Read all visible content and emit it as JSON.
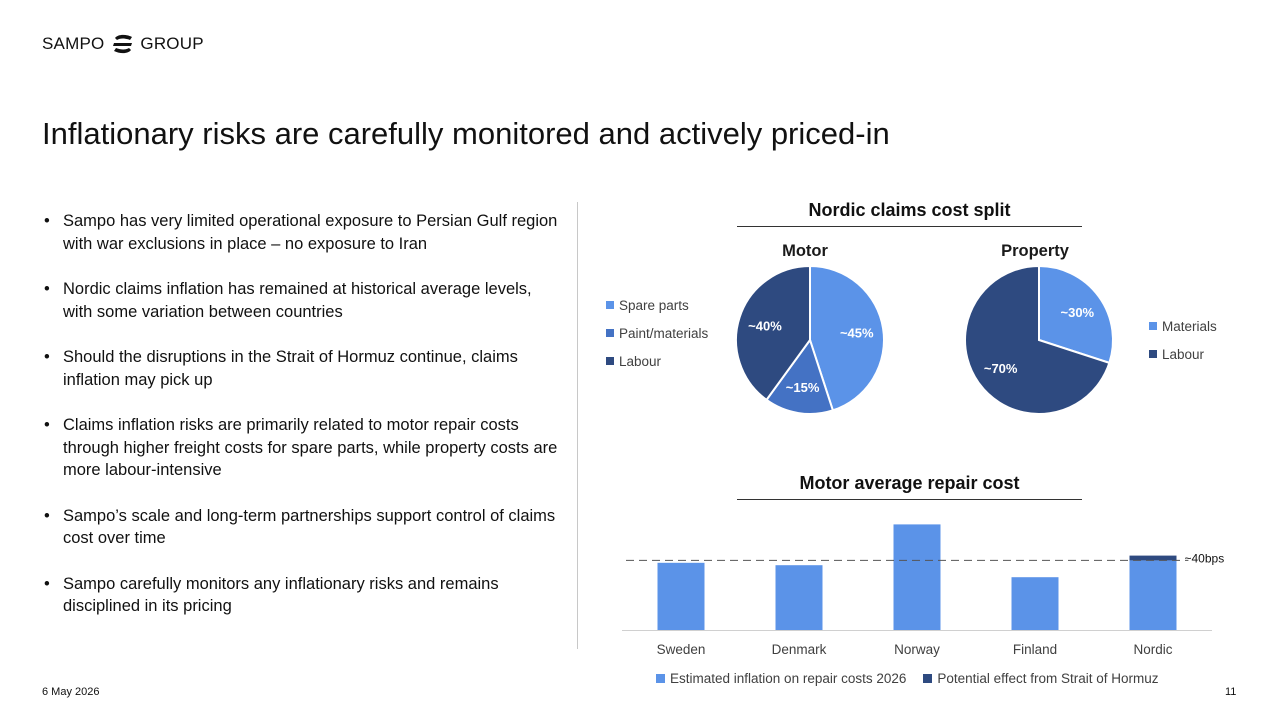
{
  "brand": {
    "left": "SAMPO",
    "right": "GROUP"
  },
  "title": "Inflationary risks are carefully monitored and actively priced-in",
  "bullets": [
    "Sampo has very limited operational exposure to Persian Gulf region with war exclusions in place – no exposure to Iran",
    "Nordic claims inflation has remained at historical average levels, with some variation between countries",
    "Should the disruptions in the Strait of Hormuz continue, claims inflation may pick up",
    "Claims inflation risks are primarily related to motor repair costs through higher freight costs for spare parts, while property costs are more labour-intensive",
    "Sampo’s scale and long-term partnerships support control of claims cost over time",
    "Sampo carefully monitors any inflationary risks and remains disciplined in its pricing"
  ],
  "colors": {
    "light": "#5b93e8",
    "mid": "#4472c4",
    "dark": "#2e4a80"
  },
  "chart_data": [
    {
      "type": "pie",
      "group_title": "Nordic claims cost split",
      "title": "Motor",
      "labels": [
        "Spare parts",
        "Paint/materials",
        "Labour"
      ],
      "values": [
        45,
        15,
        40
      ],
      "value_labels": [
        "~45%",
        "~15%",
        "~40%"
      ],
      "colors": [
        "#5b93e8",
        "#4472c4",
        "#2e4a80"
      ]
    },
    {
      "type": "pie",
      "group_title": "Nordic claims cost split",
      "title": "Property",
      "labels": [
        "Materials",
        "Labour"
      ],
      "values": [
        30,
        70
      ],
      "value_labels": [
        "~30%",
        "~70%"
      ],
      "colors": [
        "#5b93e8",
        "#2e4a80"
      ]
    },
    {
      "type": "bar",
      "stacked": true,
      "title": "Motor average repair cost",
      "categories": [
        "Sweden",
        "Denmark",
        "Norway",
        "Finland",
        "Nordic"
      ],
      "series": [
        {
          "name": "Estimated inflation on repair costs 2026",
          "values": [
            5.6,
            5.4,
            8.8,
            4.4,
            5.8
          ],
          "color": "#5b93e8"
        },
        {
          "name": "Potential effect from Strait of Hormuz",
          "values": [
            0,
            0,
            0,
            0,
            0.4
          ],
          "color": "#2e4a80"
        }
      ],
      "reference_line": 5.8,
      "annotation": "~40bps",
      "ylim": [
        0,
        10
      ]
    }
  ],
  "footer": {
    "date": "6 May 2026",
    "page": "11"
  }
}
